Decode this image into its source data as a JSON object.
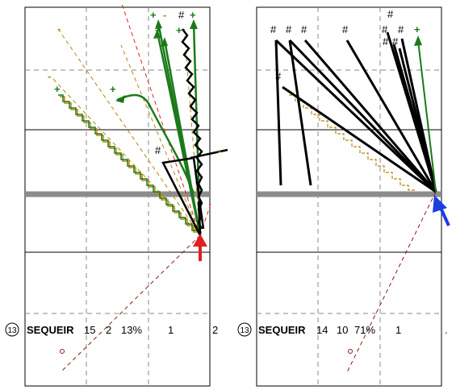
{
  "panels": [
    {
      "id": "left",
      "markers": [
        {
          "t": "#",
          "c": "black"
        },
        {
          "t": "+",
          "c": "green"
        },
        {
          "t": "-",
          "c": "orange"
        },
        {
          "t": "+",
          "c": "green"
        },
        {
          "t": "+",
          "c": "green"
        },
        {
          "t": "+",
          "c": "green"
        },
        {
          "t": "-",
          "c": "orange"
        },
        {
          "t": "+",
          "c": "green"
        },
        {
          "t": "-",
          "c": "orange"
        },
        {
          "t": "+",
          "c": "green"
        },
        {
          "t": "#",
          "c": "black"
        },
        {
          "t": "-",
          "c": "orange"
        }
      ],
      "footer": {
        "rank": "⑬",
        "name": "SEQUEIR",
        "v1": "15",
        "v2": "2",
        "pct": "13%",
        "v3": "1",
        "v4": "2"
      }
    },
    {
      "id": "right",
      "markers": [
        {
          "t": "#",
          "c": "black"
        },
        {
          "t": "#",
          "c": "black"
        },
        {
          "t": "#",
          "c": "black"
        },
        {
          "t": "#",
          "c": "black"
        },
        {
          "t": "#",
          "c": "black"
        },
        {
          "t": "#",
          "c": "black"
        },
        {
          "t": "#",
          "c": "black"
        },
        {
          "t": "#",
          "c": "black"
        },
        {
          "t": "#",
          "c": "black"
        },
        {
          "t": "+",
          "c": "green"
        },
        {
          "t": "#",
          "c": "black"
        }
      ],
      "footer": {
        "rank": "⑬",
        "name": "SEQUEIR",
        "v1": "14",
        "v2": "10",
        "pct": "71%",
        "v3": "1",
        "v4": "."
      }
    }
  ],
  "colors": {
    "green": "#1a7a1a",
    "orange": "#b8860b",
    "red": "#e02020",
    "blue": "#1a3fe0",
    "dark_red": "#8b1a1a"
  }
}
